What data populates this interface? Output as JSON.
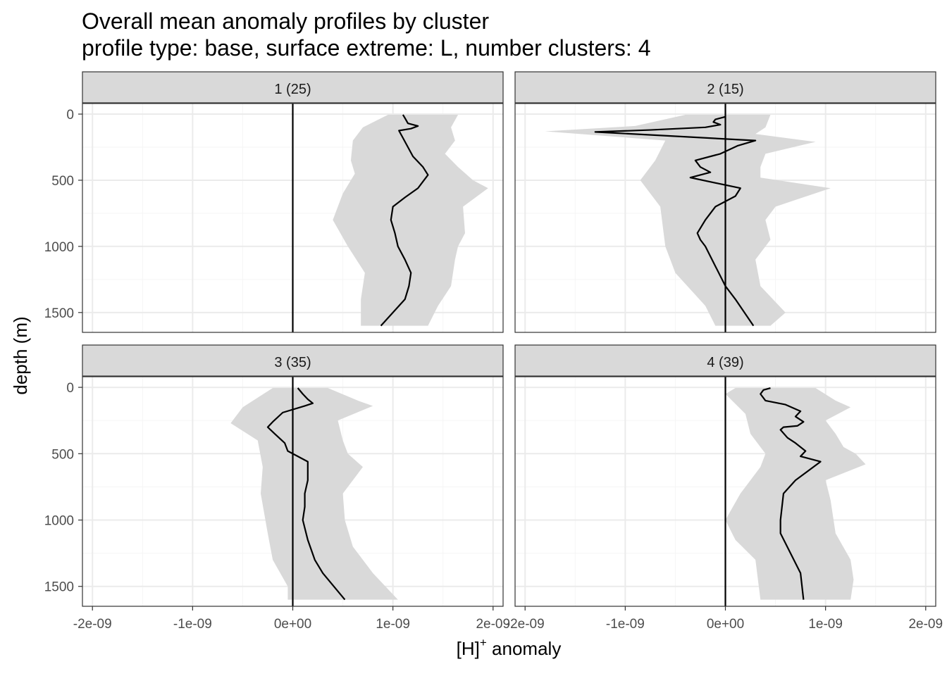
{
  "title": {
    "line1": "Overall mean anomaly profiles by cluster",
    "line2": "profile type: base, surface extreme: L, number clusters: 4"
  },
  "colors": {
    "ribbon": "#d9d9d9",
    "line": "#000000",
    "strip": "#d9d9d9",
    "grid_major": "#ebebeb",
    "grid_minor": "#f5f5f5",
    "axis_text": "#4d4d4d"
  },
  "chart_data": {
    "type": "line",
    "xlabel": "[H]",
    "xlabel_superscript": "+",
    "xlabel_suffix": " anomaly",
    "ylabel": "depth (m)",
    "xlim": [
      -2.1e-09,
      2.1e-09
    ],
    "ylim": [
      1650,
      -80
    ],
    "x_ticks": [
      -2e-09,
      -1e-09,
      0,
      1e-09,
      2e-09
    ],
    "x_tick_labels": [
      "-2e-09",
      "-1e-09",
      "0e+00",
      "1e-09",
      "2e-09"
    ],
    "y_ticks": [
      0,
      500,
      1000,
      1500
    ],
    "y_tick_labels": [
      "0",
      "500",
      "1000",
      "1500"
    ],
    "reference_line_x": 0,
    "panels": [
      {
        "label": "1 (25)",
        "mean": [
          [
            1.1e-09,
            5
          ],
          [
            1.12e-09,
            30
          ],
          [
            1.15e-09,
            70
          ],
          [
            1.25e-09,
            90
          ],
          [
            1.18e-09,
            110
          ],
          [
            1.06e-09,
            125
          ],
          [
            1.1e-09,
            180
          ],
          [
            1.15e-09,
            250
          ],
          [
            1.2e-09,
            320
          ],
          [
            1.3e-09,
            400
          ],
          [
            1.35e-09,
            460
          ],
          [
            1.3e-09,
            510
          ],
          [
            1.25e-09,
            560
          ],
          [
            1.12e-09,
            630
          ],
          [
            1e-09,
            700
          ],
          [
            9.8e-10,
            800
          ],
          [
            1.02e-09,
            900
          ],
          [
            1.05e-09,
            1000
          ],
          [
            1.12e-09,
            1100
          ],
          [
            1.18e-09,
            1200
          ],
          [
            1.16e-09,
            1300
          ],
          [
            1.12e-09,
            1400
          ],
          [
            8.8e-10,
            1600
          ]
        ],
        "lower": [
          [
            9.5e-10,
            5
          ],
          [
            7e-10,
            100
          ],
          [
            6e-10,
            200
          ],
          [
            5.8e-10,
            350
          ],
          [
            6.2e-10,
            450
          ],
          [
            5e-10,
            600
          ],
          [
            4e-10,
            800
          ],
          [
            5.5e-10,
            1000
          ],
          [
            7.2e-10,
            1200
          ],
          [
            6.8e-10,
            1400
          ],
          [
            6.8e-10,
            1600
          ]
        ],
        "upper": [
          [
            1.65e-09,
            5
          ],
          [
            1.58e-09,
            100
          ],
          [
            1.62e-09,
            200
          ],
          [
            1.52e-09,
            300
          ],
          [
            1.65e-09,
            400
          ],
          [
            1.8e-09,
            500
          ],
          [
            1.95e-09,
            560
          ],
          [
            1.7e-09,
            700
          ],
          [
            1.72e-09,
            900
          ],
          [
            1.65e-09,
            1000
          ],
          [
            1.62e-09,
            1100
          ],
          [
            1.58e-09,
            1300
          ],
          [
            1.45e-09,
            1450
          ],
          [
            1.35e-09,
            1600
          ]
        ]
      },
      {
        "label": "2 (15)",
        "mean": [
          [
            0.0,
            20
          ],
          [
            -1e-10,
            40
          ],
          [
            -1.2e-10,
            60
          ],
          [
            -5e-11,
            80
          ],
          [
            -2e-10,
            100
          ],
          [
            -7.5e-10,
            120
          ],
          [
            -1.3e-09,
            135
          ],
          [
            3e-10,
            200
          ],
          [
            1.2e-10,
            240
          ],
          [
            -5e-11,
            300
          ],
          [
            -3e-10,
            350
          ],
          [
            -2.5e-10,
            400
          ],
          [
            -1.5e-10,
            440
          ],
          [
            -3.5e-10,
            480
          ],
          [
            1.5e-10,
            560
          ],
          [
            1e-10,
            620
          ],
          [
            -1e-10,
            700
          ],
          [
            -2e-10,
            800
          ],
          [
            -2.8e-10,
            900
          ],
          [
            -2.5e-10,
            950
          ],
          [
            -2e-10,
            1000
          ],
          [
            -1e-10,
            1150
          ],
          [
            0.0,
            1300
          ],
          [
            1e-10,
            1400
          ],
          [
            2.8e-10,
            1600
          ]
        ],
        "lower": [
          [
            -4e-10,
            5
          ],
          [
            -9e-10,
            90
          ],
          [
            -1.8e-09,
            130
          ],
          [
            -6e-10,
            200
          ],
          [
            -7e-10,
            350
          ],
          [
            -8.5e-10,
            500
          ],
          [
            -6.5e-10,
            700
          ],
          [
            -6e-10,
            1000
          ],
          [
            -5e-10,
            1200
          ],
          [
            -2e-10,
            1450
          ],
          [
            -1e-10,
            1600
          ]
        ],
        "upper": [
          [
            4.5e-10,
            5
          ],
          [
            4e-10,
            100
          ],
          [
            3e-10,
            150
          ],
          [
            9e-10,
            210
          ],
          [
            4e-10,
            300
          ],
          [
            3.5e-10,
            400
          ],
          [
            3.5e-10,
            480
          ],
          [
            1.05e-09,
            560
          ],
          [
            5e-10,
            700
          ],
          [
            4e-10,
            800
          ],
          [
            4.5e-10,
            950
          ],
          [
            3e-10,
            1100
          ],
          [
            3.5e-10,
            1300
          ],
          [
            6e-10,
            1500
          ],
          [
            4.5e-10,
            1600
          ]
        ]
      },
      {
        "label": "3 (35)",
        "mean": [
          [
            5e-11,
            5
          ],
          [
            1e-10,
            50
          ],
          [
            1.5e-10,
            90
          ],
          [
            2e-10,
            120
          ],
          [
            1.2e-10,
            140
          ],
          [
            -1e-10,
            190
          ],
          [
            -2e-10,
            260
          ],
          [
            -2.5e-10,
            300
          ],
          [
            -1.8e-10,
            350
          ],
          [
            -8e-11,
            420
          ],
          [
            -5e-11,
            480
          ],
          [
            1.5e-10,
            560
          ],
          [
            1.5e-10,
            700
          ],
          [
            1.2e-10,
            800
          ],
          [
            1.2e-10,
            900
          ],
          [
            1e-10,
            1000
          ],
          [
            1.5e-10,
            1150
          ],
          [
            2.2e-10,
            1300
          ],
          [
            3e-10,
            1400
          ],
          [
            5.2e-10,
            1600
          ]
        ],
        "lower": [
          [
            -2e-10,
            5
          ],
          [
            -5e-10,
            150
          ],
          [
            -6.2e-10,
            270
          ],
          [
            -3.5e-10,
            400
          ],
          [
            -3e-10,
            600
          ],
          [
            -3.2e-10,
            800
          ],
          [
            -2.5e-10,
            1100
          ],
          [
            -2e-10,
            1300
          ],
          [
            -5e-11,
            1500
          ],
          [
            -5e-11,
            1600
          ]
        ],
        "upper": [
          [
            3.5e-10,
            5
          ],
          [
            6.5e-10,
            100
          ],
          [
            8e-10,
            140
          ],
          [
            4.5e-10,
            250
          ],
          [
            5e-10,
            400
          ],
          [
            5.5e-10,
            500
          ],
          [
            7e-10,
            600
          ],
          [
            5e-10,
            800
          ],
          [
            5.2e-10,
            1000
          ],
          [
            6e-10,
            1200
          ],
          [
            8e-10,
            1400
          ],
          [
            1.05e-09,
            1600
          ]
        ]
      },
      {
        "label": "4 (39)",
        "mean": [
          [
            4.5e-10,
            5
          ],
          [
            3.8e-10,
            20
          ],
          [
            3.5e-10,
            50
          ],
          [
            4e-10,
            100
          ],
          [
            6e-10,
            130
          ],
          [
            7.5e-10,
            180
          ],
          [
            7e-10,
            220
          ],
          [
            7.8e-10,
            260
          ],
          [
            7.2e-10,
            290
          ],
          [
            5.8e-10,
            300
          ],
          [
            5.5e-10,
            320
          ],
          [
            6.2e-10,
            380
          ],
          [
            7e-10,
            420
          ],
          [
            8e-10,
            480
          ],
          [
            7.5e-10,
            520
          ],
          [
            9.5e-10,
            560
          ],
          [
            7e-10,
            700
          ],
          [
            5.8e-10,
            800
          ],
          [
            5.5e-10,
            1000
          ],
          [
            5.5e-10,
            1100
          ],
          [
            6.5e-10,
            1250
          ],
          [
            7.5e-10,
            1400
          ],
          [
            7.8e-10,
            1600
          ]
        ],
        "lower": [
          [
            1e-10,
            5
          ],
          [
            0.0,
            50
          ],
          [
            2e-10,
            200
          ],
          [
            2.5e-10,
            350
          ],
          [
            4e-10,
            500
          ],
          [
            3.5e-10,
            600
          ],
          [
            1.5e-10,
            800
          ],
          [
            0.0,
            1000
          ],
          [
            1e-10,
            1150
          ],
          [
            3e-10,
            1300
          ],
          [
            3.5e-10,
            1600
          ]
        ],
        "upper": [
          [
            9e-10,
            5
          ],
          [
            1.1e-09,
            100
          ],
          [
            1.25e-09,
            150
          ],
          [
            1e-09,
            250
          ],
          [
            1.1e-09,
            350
          ],
          [
            1.18e-09,
            450
          ],
          [
            1.3e-09,
            500
          ],
          [
            1.4e-09,
            580
          ],
          [
            1e-09,
            700
          ],
          [
            1.05e-09,
            850
          ],
          [
            1.1e-09,
            1100
          ],
          [
            1.25e-09,
            1300
          ],
          [
            1.28e-09,
            1450
          ],
          [
            1.25e-09,
            1600
          ]
        ]
      }
    ]
  }
}
